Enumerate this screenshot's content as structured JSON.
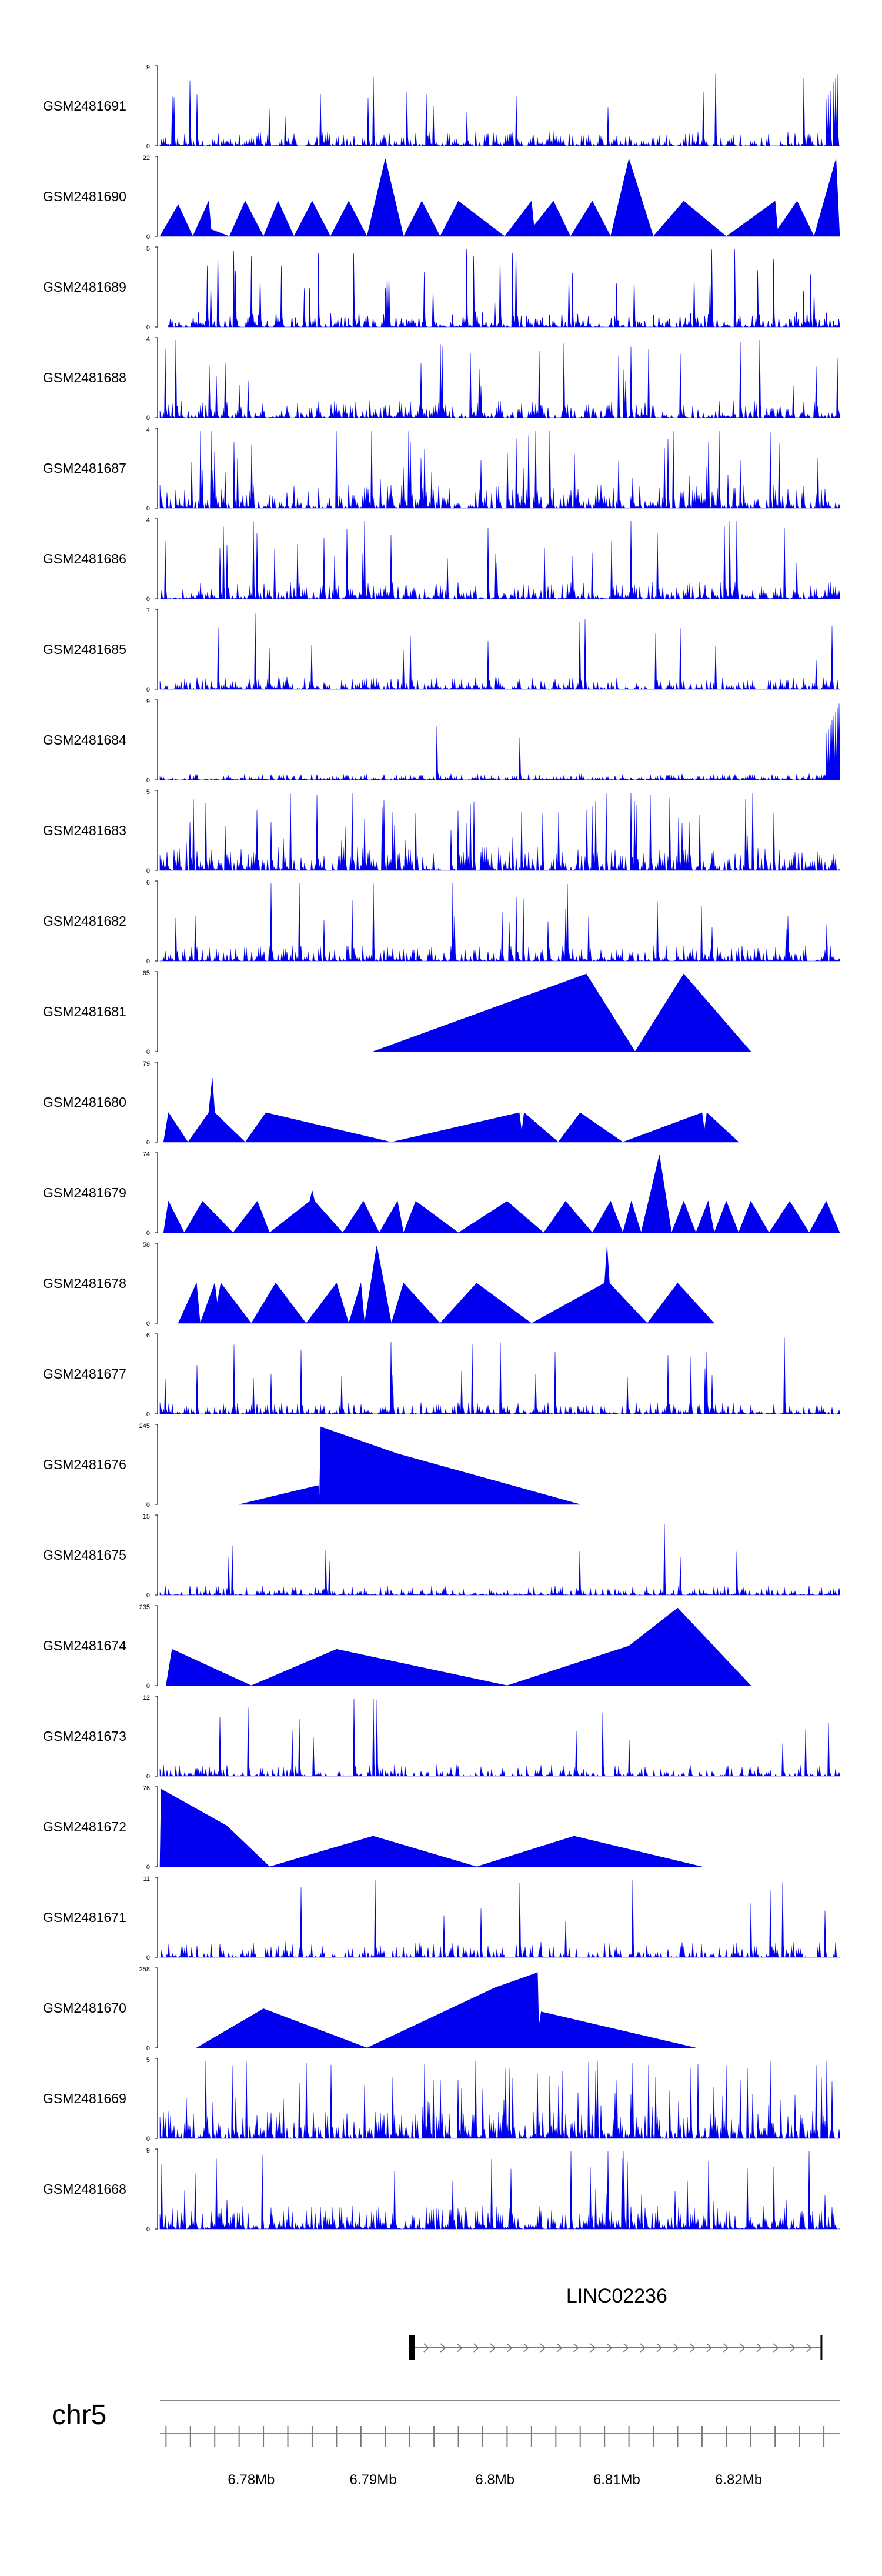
{
  "chart_data": {
    "type": "area",
    "title": "",
    "chromosome": "chr5",
    "region_mb": [
      6.7725,
      6.8283
    ],
    "colors": {
      "signal": "#0000ee",
      "axis": "#000000",
      "ruler": "#888888"
    },
    "x_ticks": [
      {
        "mb": 6.78,
        "label": "6.78Mb"
      },
      {
        "mb": 6.79,
        "label": "6.79Mb"
      },
      {
        "mb": 6.8,
        "label": "6.8Mb"
      },
      {
        "mb": 6.81,
        "label": "6.81Mb"
      },
      {
        "mb": 6.82,
        "label": "6.82Mb"
      }
    ],
    "gene": {
      "name": "LINC02236",
      "start_mb": 6.7932,
      "end_mb": 6.8268,
      "strand": "+"
    },
    "tracks": [
      {
        "name": "GSM2481691",
        "ymax": 9,
        "ymin": 0,
        "style": "dense",
        "seed": 11,
        "density": 0.85,
        "base": 0.18,
        "spike_rate": 0.06,
        "domain": [
          6.7725,
          6.8283
        ],
        "tail_rise": true
      },
      {
        "name": "GSM2481690",
        "ymax": 22,
        "ymin": 0,
        "style": "peaks",
        "peaks": [
          [
            6.7725,
            0
          ],
          [
            6.774,
            9
          ],
          [
            6.7752,
            0
          ],
          [
            6.7765,
            10
          ],
          [
            6.7767,
            2
          ],
          [
            6.7782,
            0
          ],
          [
            6.7795,
            10
          ],
          [
            6.781,
            0
          ],
          [
            6.7822,
            10
          ],
          [
            6.7835,
            0
          ],
          [
            6.785,
            10
          ],
          [
            6.7865,
            0
          ],
          [
            6.788,
            10
          ],
          [
            6.7895,
            0
          ],
          [
            6.791,
            22
          ],
          [
            6.7925,
            0
          ],
          [
            6.794,
            10
          ],
          [
            6.7955,
            0
          ],
          [
            6.797,
            10
          ],
          [
            6.8008,
            0
          ],
          [
            6.803,
            10
          ],
          [
            6.8032,
            3
          ],
          [
            6.8048,
            10
          ],
          [
            6.8062,
            0
          ],
          [
            6.808,
            10
          ],
          [
            6.8095,
            0
          ],
          [
            6.811,
            22
          ],
          [
            6.813,
            0
          ],
          [
            6.8155,
            10
          ],
          [
            6.819,
            0
          ],
          [
            6.823,
            10
          ],
          [
            6.8232,
            2
          ],
          [
            6.8248,
            10
          ],
          [
            6.8262,
            0
          ],
          [
            6.828,
            22
          ],
          [
            6.8283,
            0
          ]
        ]
      },
      {
        "name": "GSM2481689",
        "ymax": 5,
        "ymin": 0,
        "style": "dense",
        "seed": 23,
        "density": 0.8,
        "base": 0.2,
        "spike_rate": 0.08,
        "domain": [
          6.7732,
          6.8283
        ]
      },
      {
        "name": "GSM2481688",
        "ymax": 4,
        "ymin": 0,
        "style": "dense",
        "seed": 37,
        "density": 0.85,
        "base": 0.22,
        "spike_rate": 0.1,
        "domain": [
          6.7725,
          6.8283
        ]
      },
      {
        "name": "GSM2481687",
        "ymax": 4,
        "ymin": 0,
        "style": "dense",
        "seed": 41,
        "density": 0.9,
        "base": 0.3,
        "spike_rate": 0.14,
        "domain": [
          6.7725,
          6.8283
        ]
      },
      {
        "name": "GSM2481686",
        "ymax": 4,
        "ymin": 0,
        "style": "dense",
        "seed": 53,
        "density": 0.85,
        "base": 0.22,
        "spike_rate": 0.09,
        "domain": [
          6.7725,
          6.8283
        ]
      },
      {
        "name": "GSM2481685",
        "ymax": 7,
        "ymin": 0,
        "style": "dense",
        "seed": 61,
        "density": 0.9,
        "base": 0.16,
        "spike_rate": 0.05,
        "domain": [
          6.7725,
          6.8283
        ]
      },
      {
        "name": "GSM2481684",
        "ymax": 9,
        "ymin": 0,
        "style": "dense",
        "seed": 71,
        "density": 0.95,
        "base": 0.08,
        "spike_rate": 0.02,
        "domain": [
          6.7725,
          6.8283
        ],
        "tail_rise": true
      },
      {
        "name": "GSM2481683",
        "ymax": 5,
        "ymin": 0,
        "style": "dense",
        "seed": 83,
        "density": 0.9,
        "base": 0.3,
        "spike_rate": 0.14,
        "domain": [
          6.7725,
          6.8283
        ]
      },
      {
        "name": "GSM2481682",
        "ymax": 6,
        "ymin": 0,
        "style": "dense",
        "seed": 97,
        "density": 0.85,
        "base": 0.2,
        "spike_rate": 0.08,
        "domain": [
          6.7725,
          6.8283
        ]
      },
      {
        "name": "GSM2481681",
        "ymax": 65,
        "ymin": 0,
        "style": "peaks",
        "peaks": [
          [
            6.79,
            0
          ],
          [
            6.8075,
            65
          ],
          [
            6.8115,
            0
          ],
          [
            6.8155,
            65
          ],
          [
            6.821,
            0
          ]
        ]
      },
      {
        "name": "GSM2481680",
        "ymax": 79,
        "ymin": 0,
        "style": "peaks",
        "peaks": [
          [
            6.7728,
            0
          ],
          [
            6.7732,
            30
          ],
          [
            6.7748,
            0
          ],
          [
            6.7765,
            30
          ],
          [
            6.7768,
            65
          ],
          [
            6.777,
            30
          ],
          [
            6.7795,
            0
          ],
          [
            6.7812,
            30
          ],
          [
            6.7915,
            0
          ],
          [
            6.802,
            30
          ],
          [
            6.8022,
            10
          ],
          [
            6.8024,
            30
          ],
          [
            6.8052,
            0
          ],
          [
            6.807,
            30
          ],
          [
            6.8105,
            0
          ],
          [
            6.817,
            30
          ],
          [
            6.8172,
            12
          ],
          [
            6.8174,
            30
          ],
          [
            6.82,
            0
          ]
        ]
      },
      {
        "name": "GSM2481679",
        "ymax": 74,
        "ymin": 0,
        "style": "peaks",
        "peaks": [
          [
            6.7728,
            0
          ],
          [
            6.7732,
            30
          ],
          [
            6.7745,
            0
          ],
          [
            6.776,
            30
          ],
          [
            6.7785,
            0
          ],
          [
            6.7805,
            30
          ],
          [
            6.7815,
            0
          ],
          [
            6.7848,
            30
          ],
          [
            6.785,
            40
          ],
          [
            6.7852,
            30
          ],
          [
            6.7875,
            0
          ],
          [
            6.7892,
            30
          ],
          [
            6.7905,
            0
          ],
          [
            6.792,
            30
          ],
          [
            6.7925,
            0
          ],
          [
            6.7935,
            30
          ],
          [
            6.797,
            0
          ],
          [
            6.801,
            30
          ],
          [
            6.804,
            0
          ],
          [
            6.8058,
            30
          ],
          [
            6.808,
            0
          ],
          [
            6.8095,
            30
          ],
          [
            6.8105,
            0
          ],
          [
            6.8112,
            30
          ],
          [
            6.812,
            0
          ],
          [
            6.8135,
            74
          ],
          [
            6.8145,
            0
          ],
          [
            6.8155,
            30
          ],
          [
            6.8165,
            0
          ],
          [
            6.8175,
            30
          ],
          [
            6.818,
            0
          ],
          [
            6.819,
            30
          ],
          [
            6.82,
            0
          ],
          [
            6.821,
            30
          ],
          [
            6.8225,
            0
          ],
          [
            6.8242,
            30
          ],
          [
            6.8258,
            0
          ],
          [
            6.8272,
            30
          ],
          [
            6.8283,
            0
          ]
        ]
      },
      {
        "name": "GSM2481678",
        "ymax": 58,
        "ymin": 0,
        "style": "peaks",
        "peaks": [
          [
            6.774,
            0
          ],
          [
            6.7755,
            30
          ],
          [
            6.7758,
            0
          ],
          [
            6.777,
            30
          ],
          [
            6.7772,
            15
          ],
          [
            6.7775,
            30
          ],
          [
            6.78,
            0
          ],
          [
            6.782,
            30
          ],
          [
            6.7845,
            0
          ],
          [
            6.787,
            30
          ],
          [
            6.788,
            0
          ],
          [
            6.789,
            30
          ],
          [
            6.7893,
            0
          ],
          [
            6.7903,
            58
          ],
          [
            6.7915,
            0
          ],
          [
            6.7925,
            30
          ],
          [
            6.7955,
            0
          ],
          [
            6.7985,
            30
          ],
          [
            6.803,
            0
          ],
          [
            6.809,
            30
          ],
          [
            6.8092,
            58
          ],
          [
            6.8094,
            30
          ],
          [
            6.8125,
            0
          ],
          [
            6.815,
            30
          ],
          [
            6.818,
            0
          ]
        ]
      },
      {
        "name": "GSM2481677",
        "ymax": 6,
        "ymin": 0,
        "style": "dense",
        "seed": 107,
        "density": 0.85,
        "base": 0.15,
        "spike_rate": 0.05,
        "domain": [
          6.7725,
          6.8283
        ]
      },
      {
        "name": "GSM2481676",
        "ymax": 245,
        "ymin": 0,
        "style": "peaks",
        "peaks": [
          [
            6.779,
            0
          ],
          [
            6.7855,
            60
          ],
          [
            6.7856,
            20
          ],
          [
            6.7857,
            245
          ],
          [
            6.792,
            160
          ],
          [
            6.807,
            0
          ]
        ]
      },
      {
        "name": "GSM2481675",
        "ymax": 15,
        "ymin": 0,
        "style": "dense",
        "seed": 113,
        "density": 0.8,
        "base": 0.12,
        "spike_rate": 0.05,
        "domain": [
          6.7725,
          6.8283
        ]
      },
      {
        "name": "GSM2481674",
        "ymax": 235,
        "ymin": 0,
        "style": "peaks",
        "peaks": [
          [
            6.773,
            0
          ],
          [
            6.7735,
            110
          ],
          [
            6.78,
            0
          ],
          [
            6.787,
            110
          ],
          [
            6.801,
            0
          ],
          [
            6.811,
            120
          ],
          [
            6.815,
            235
          ],
          [
            6.821,
            0
          ]
        ]
      },
      {
        "name": "GSM2481673",
        "ymax": 12,
        "ymin": 0,
        "style": "dense",
        "seed": 127,
        "density": 0.75,
        "base": 0.15,
        "spike_rate": 0.06,
        "domain": [
          6.7725,
          6.8283
        ]
      },
      {
        "name": "GSM2481672",
        "ymax": 76,
        "ymin": 0,
        "style": "peaks",
        "peaks": [
          [
            6.7725,
            0
          ],
          [
            6.7726,
            76
          ],
          [
            6.778,
            40
          ],
          [
            6.7815,
            0
          ],
          [
            6.79,
            30
          ],
          [
            6.7985,
            0
          ],
          [
            6.8065,
            30
          ],
          [
            6.817,
            0
          ]
        ]
      },
      {
        "name": "GSM2481671",
        "ymax": 11,
        "ymin": 0,
        "style": "dense",
        "seed": 131,
        "density": 0.7,
        "base": 0.2,
        "spike_rate": 0.04,
        "domain": [
          6.7725,
          6.8283
        ]
      },
      {
        "name": "GSM2481670",
        "ymax": 258,
        "ymin": 0,
        "style": "peaks",
        "peaks": [
          [
            6.7755,
            0
          ],
          [
            6.781,
            130
          ],
          [
            6.7895,
            0
          ],
          [
            6.8,
            200
          ],
          [
            6.8035,
            250
          ],
          [
            6.8036,
            70
          ],
          [
            6.8038,
            120
          ],
          [
            6.8165,
            0
          ]
        ]
      },
      {
        "name": "GSM2481669",
        "ymax": 5,
        "ymin": 0,
        "style": "dense",
        "seed": 139,
        "density": 0.92,
        "base": 0.35,
        "spike_rate": 0.12,
        "domain": [
          6.7725,
          6.8283
        ]
      },
      {
        "name": "GSM2481668",
        "ymax": 9,
        "ymin": 0,
        "style": "dense",
        "seed": 149,
        "density": 0.92,
        "base": 0.3,
        "spike_rate": 0.1,
        "domain": [
          6.7725,
          6.8283
        ]
      }
    ]
  }
}
